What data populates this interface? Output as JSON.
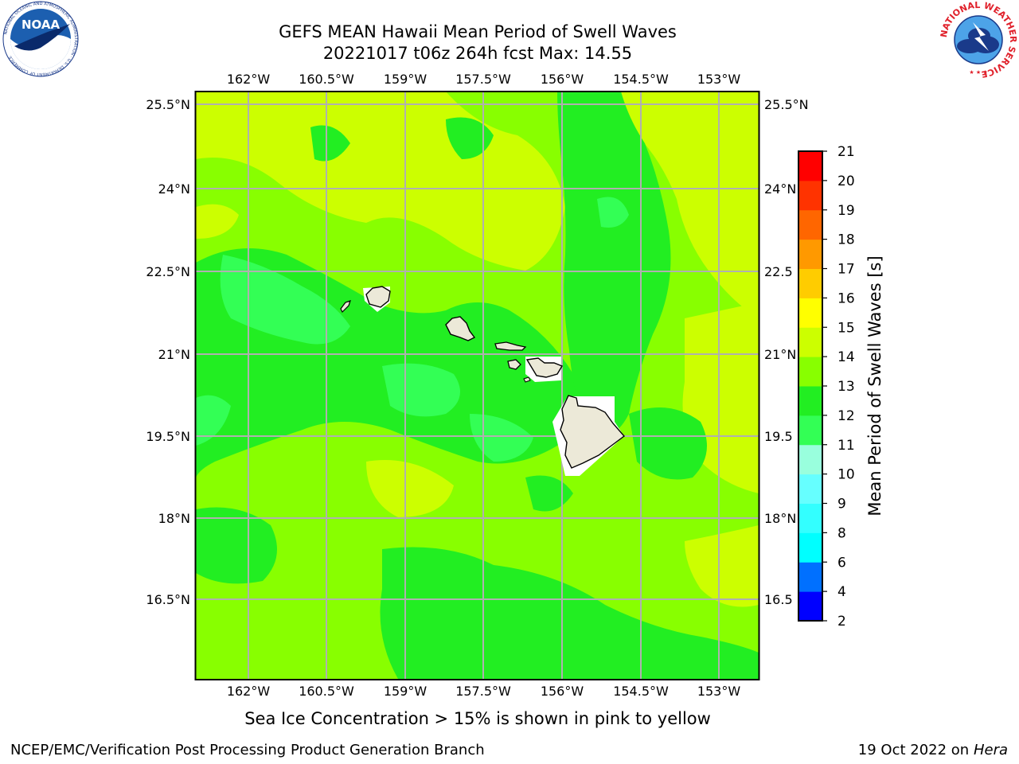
{
  "title_line1": "GEFS MEAN Hawaii Mean Period of Swell Waves",
  "title_line2": "20221017 t06z 264h fcst   Max: 14.55",
  "caption": "Sea Ice Concentration > 15% is shown in pink to yellow",
  "footer_left": "NCEP/EMC/Verification Post Processing Product Generation Branch",
  "footer_date": "19 Oct 2022 on",
  "footer_machine": "Hera",
  "logos": {
    "noaa_text": "NOAA",
    "noaa_ring_text": "NATIONAL OCEANIC AND ATMOSPHERIC ADMINISTRATION · U.S. DEPARTMENT OF COMMERCE",
    "nws_ring_text": "NATIONAL WEATHER SERVICE"
  },
  "chart_data": {
    "type": "heatmap",
    "lon_labels_top": [
      "162°W",
      "160.5°W",
      "159°W",
      "157.5°W",
      "156°W",
      "154.5°W",
      "153°W"
    ],
    "lon_labels_bottom": [
      "162°W",
      "160.5°W",
      "159°W",
      "157.5°W",
      "156°W",
      "154.5°W",
      "153°W"
    ],
    "lat_labels_left": [
      "25.5°N",
      "24°N",
      "22.5°N",
      "21°N",
      "19.5°N",
      "18°N",
      "16.5°N"
    ],
    "lat_labels_right": [
      "25.5°N",
      "24°N",
      "22.5",
      "21°N",
      "19.5",
      "18°N",
      "16.5"
    ],
    "lon_range": [
      -163,
      -152.6
    ],
    "lat_range": [
      15.0,
      25.7
    ],
    "grid": true,
    "colorbar": {
      "label": "Mean Period of Swell Waves [s]",
      "levels": [
        2,
        4,
        6,
        8,
        9,
        10,
        11,
        12,
        13,
        14,
        15,
        16,
        17,
        18,
        19,
        20,
        21
      ],
      "colors": [
        "#0000ff",
        "#0070ff",
        "#00ffff",
        "#33ffff",
        "#66ffff",
        "#99ffdd",
        "#33ff55",
        "#22ee22",
        "#88ff00",
        "#ccff00",
        "#ffff00",
        "#ffcc00",
        "#ff9900",
        "#ff6600",
        "#ff3300",
        "#ff0000"
      ]
    },
    "field_colors": [
      "#33ff55",
      "#22ee22",
      "#88ff00",
      "#ccff00"
    ],
    "land_color": "#ece9d8",
    "islands": [
      "Niihau",
      "Kauai",
      "Oahu",
      "Molokai",
      "Lanai",
      "Maui",
      "Kahoolawe",
      "Hawaii"
    ]
  }
}
